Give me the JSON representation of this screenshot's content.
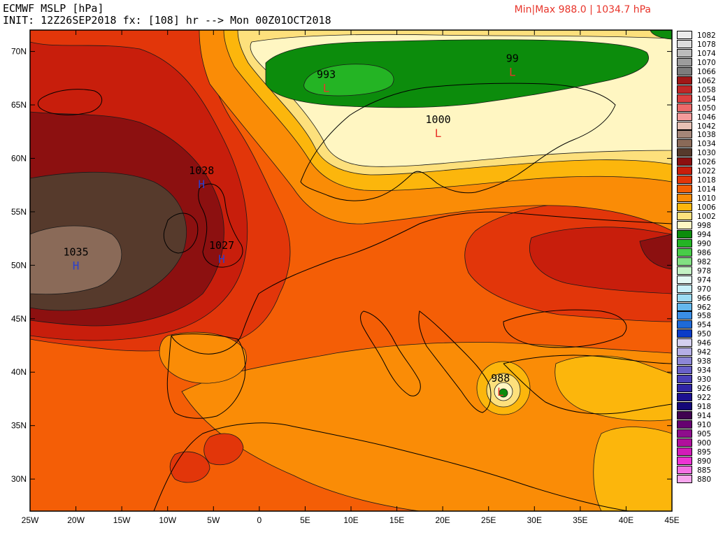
{
  "header": {
    "title": "ECMWF MSLP [hPa]",
    "init_line": "INIT: 12Z26SEP2018 fx: [108] hr --> Mon 00Z01OCT2018",
    "minmax": "Min|Max 988.0 | 1034.7 hPa"
  },
  "chart_data": {
    "type": "heatmap",
    "title": "ECMWF MSLP [hPa]",
    "units": "hPa",
    "init": "12Z26SEP2018",
    "forecast_hour": 108,
    "valid": "Mon 00Z01OCT2018",
    "min": 988.0,
    "max": 1034.7,
    "xlim": [
      -25,
      45
    ],
    "ylim": [
      27,
      72
    ],
    "x_ticks": [
      {
        "value": -25,
        "label": "25W"
      },
      {
        "value": -20,
        "label": "20W"
      },
      {
        "value": -15,
        "label": "15W"
      },
      {
        "value": -10,
        "label": "10W"
      },
      {
        "value": -5,
        "label": "5W"
      },
      {
        "value": 0,
        "label": "0"
      },
      {
        "value": 5,
        "label": "5E"
      },
      {
        "value": 10,
        "label": "10E"
      },
      {
        "value": 15,
        "label": "15E"
      },
      {
        "value": 20,
        "label": "20E"
      },
      {
        "value": 25,
        "label": "25E"
      },
      {
        "value": 30,
        "label": "30E"
      },
      {
        "value": 35,
        "label": "35E"
      },
      {
        "value": 40,
        "label": "40E"
      },
      {
        "value": 45,
        "label": "45E"
      }
    ],
    "y_ticks": [
      {
        "value": 30,
        "label": "30N"
      },
      {
        "value": 35,
        "label": "35N"
      },
      {
        "value": 40,
        "label": "40N"
      },
      {
        "value": 45,
        "label": "45N"
      },
      {
        "value": 50,
        "label": "50N"
      },
      {
        "value": 55,
        "label": "55N"
      },
      {
        "value": 60,
        "label": "60N"
      },
      {
        "value": 65,
        "label": "65N"
      },
      {
        "value": 70,
        "label": "70N"
      }
    ],
    "pressure_centers": [
      {
        "type": "H",
        "value": "1035",
        "lon": -20,
        "lat": 50,
        "color": "#2a3fcf"
      },
      {
        "type": "H",
        "value": "1028",
        "lon": -6.3,
        "lat": 57.6,
        "color": "#2a3fcf"
      },
      {
        "type": "H",
        "value": "1027",
        "lon": -4.1,
        "lat": 50.6,
        "color": "#2a3fcf"
      },
      {
        "type": "L",
        "value": "993",
        "lon": 7.3,
        "lat": 66.6,
        "color": "#e8342a"
      },
      {
        "type": "L",
        "value": "99",
        "lon": 27.6,
        "lat": 68.1,
        "color": "#e8342a"
      },
      {
        "type": "L",
        "value": "1000",
        "lon": 19.5,
        "lat": 62.4,
        "color": "#e8342a"
      },
      {
        "type": "L",
        "value": "988",
        "lon": 26.3,
        "lat": 38.2,
        "color": "#e8342a"
      }
    ],
    "colorbar": [
      {
        "label": "1082",
        "color": "#ececec"
      },
      {
        "label": "1078",
        "color": "#dcdcdc"
      },
      {
        "label": "1074",
        "color": "#bcbcbc"
      },
      {
        "label": "1070",
        "color": "#9c9c9c"
      },
      {
        "label": "1066",
        "color": "#7c7c7c"
      },
      {
        "label": "1062",
        "color": "#a01818"
      },
      {
        "label": "1058",
        "color": "#c02828"
      },
      {
        "label": "1054",
        "color": "#dc4040"
      },
      {
        "label": "1050",
        "color": "#ec6a6a"
      },
      {
        "label": "1046",
        "color": "#f49c9c"
      },
      {
        "label": "1042",
        "color": "#e6c0b4"
      },
      {
        "label": "1038",
        "color": "#a48678"
      },
      {
        "label": "1034",
        "color": "#8a6a58"
      },
      {
        "label": "1030",
        "color": "#563a2c"
      },
      {
        "label": "1026",
        "color": "#8c1010"
      },
      {
        "label": "1022",
        "color": "#c81e0c"
      },
      {
        "label": "1018",
        "color": "#e2360a"
      },
      {
        "label": "1014",
        "color": "#f45e06"
      },
      {
        "label": "1010",
        "color": "#fa8c06"
      },
      {
        "label": "1006",
        "color": "#fcb60c"
      },
      {
        "label": "1002",
        "color": "#fde07c"
      },
      {
        "label": "998",
        "color": "#fff6c2"
      },
      {
        "label": "994",
        "color": "#0c8c0c"
      },
      {
        "label": "990",
        "color": "#24b424"
      },
      {
        "label": "986",
        "color": "#48cc48"
      },
      {
        "label": "982",
        "color": "#82e082"
      },
      {
        "label": "978",
        "color": "#c4f2c4"
      },
      {
        "label": "974",
        "color": "#e4f8f4"
      },
      {
        "label": "970",
        "color": "#c8f0fa"
      },
      {
        "label": "966",
        "color": "#9cdcf4"
      },
      {
        "label": "962",
        "color": "#64b8ee"
      },
      {
        "label": "958",
        "color": "#3a8ee6"
      },
      {
        "label": "954",
        "color": "#1e6ad8"
      },
      {
        "label": "950",
        "color": "#0a3cc8"
      },
      {
        "label": "946",
        "color": "#d4d0f0"
      },
      {
        "label": "942",
        "color": "#b4aee6"
      },
      {
        "label": "938",
        "color": "#8c86d6"
      },
      {
        "label": "934",
        "color": "#6860c8"
      },
      {
        "label": "930",
        "color": "#4a40ba"
      },
      {
        "label": "926",
        "color": "#3024a6"
      },
      {
        "label": "922",
        "color": "#1c1090"
      },
      {
        "label": "918",
        "color": "#140878"
      },
      {
        "label": "914",
        "color": "#400450"
      },
      {
        "label": "910",
        "color": "#660070"
      },
      {
        "label": "905",
        "color": "#8e0e8c"
      },
      {
        "label": "900",
        "color": "#b0109c"
      },
      {
        "label": "895",
        "color": "#d21cb8"
      },
      {
        "label": "890",
        "color": "#ee34d4"
      },
      {
        "label": "885",
        "color": "#f472e4"
      },
      {
        "label": "880",
        "color": "#f8a6ee"
      }
    ],
    "grid": false,
    "legend": "right"
  }
}
